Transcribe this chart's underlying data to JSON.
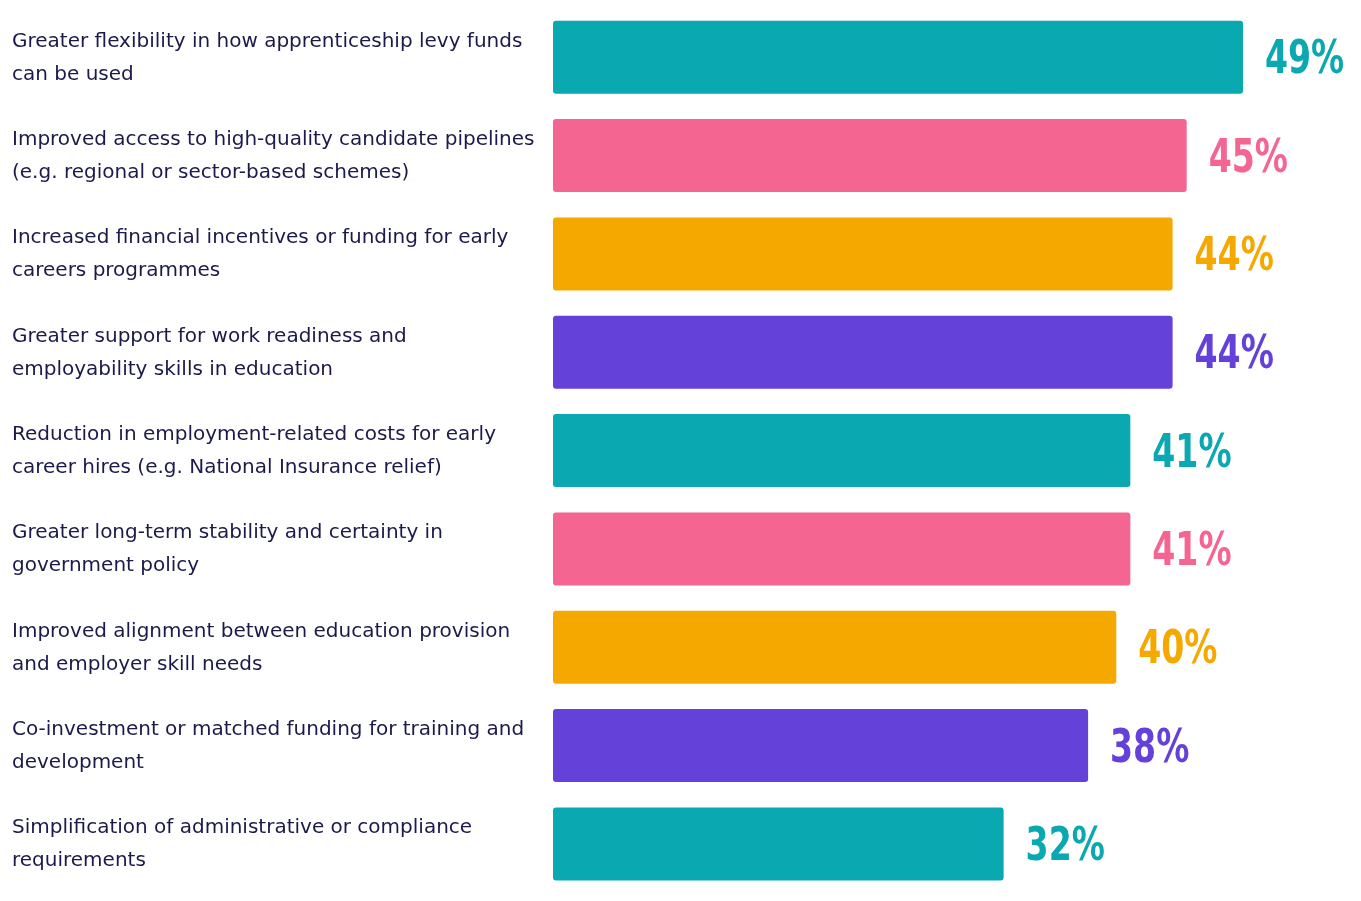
{
  "chart_data": {
    "type": "bar",
    "orientation": "horizontal",
    "categories": [
      "Greater flexibility in how apprenticeship levy funds can be used",
      "Improved access to high-quality candidate pipelines (e.g. regional or sector-based schemes)",
      "Increased financial incentives or funding for early careers programmes",
      "Greater support for work readiness and employability skills in education",
      "Reduction in employment-related costs for early career hires (e.g. National Insurance relief)",
      "Greater long-term stability and certainty in government policy",
      "Improved alignment between education provision and employer skill needs",
      "Co-investment or matched funding for training and development",
      "Simplification of administrative or compliance requirements"
    ],
    "values": [
      49,
      45,
      44,
      44,
      41,
      41,
      40,
      38,
      32
    ],
    "colors": [
      "#0aa8b0",
      "#f46592",
      "#f5a800",
      "#6441d8",
      "#0aa8b0",
      "#f46592",
      "#f5a800",
      "#6441d8",
      "#0aa8b0"
    ],
    "value_labels": [
      "49%",
      "45%",
      "44%",
      "44%",
      "41%",
      "41%",
      "40%",
      "38%",
      "32%"
    ],
    "relative": false
  }
}
